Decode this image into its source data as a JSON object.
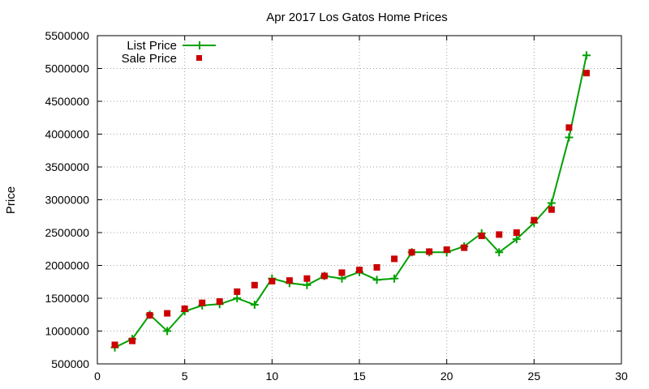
{
  "chart_data": {
    "type": "line",
    "title": "Apr 2017 Los Gatos Home Prices",
    "xlabel": "",
    "ylabel": "Price",
    "xlim": [
      0,
      30
    ],
    "ylim": [
      500000,
      5500000
    ],
    "xticks": [
      "0",
      "5",
      "10",
      "15",
      "20",
      "25",
      "30"
    ],
    "yticks": [
      "500000",
      "1000000",
      "1500000",
      "2000000",
      "2500000",
      "3000000",
      "3500000",
      "4000000",
      "4500000",
      "5000000",
      "5500000"
    ],
    "grid": true,
    "legend_position": "top-left",
    "series": [
      {
        "name": "List Price",
        "color": "#00a000",
        "style": "line-plus",
        "x": [
          1,
          2,
          3,
          4,
          5,
          6,
          7,
          8,
          9,
          10,
          11,
          12,
          13,
          14,
          15,
          16,
          17,
          18,
          19,
          20,
          21,
          22,
          23,
          24,
          25,
          26,
          27,
          28
        ],
        "y": [
          750000,
          880000,
          1250000,
          1000000,
          1300000,
          1390000,
          1410000,
          1500000,
          1400000,
          1800000,
          1730000,
          1700000,
          1840000,
          1800000,
          1900000,
          1780000,
          1800000,
          2200000,
          2200000,
          2200000,
          2290000,
          2490000,
          2200000,
          2400000,
          2650000,
          2950000,
          3950000,
          5200000
        ]
      },
      {
        "name": "Sale Price",
        "color": "#cc0000",
        "style": "square-marker",
        "x": [
          1,
          2,
          3,
          4,
          5,
          6,
          7,
          8,
          9,
          10,
          11,
          12,
          13,
          14,
          15,
          16,
          17,
          18,
          19,
          20,
          21,
          22,
          23,
          24,
          25,
          26,
          27,
          28
        ],
        "y": [
          790000,
          850000,
          1240000,
          1270000,
          1340000,
          1430000,
          1450000,
          1600000,
          1700000,
          1760000,
          1770000,
          1800000,
          1840000,
          1890000,
          1930000,
          1970000,
          2100000,
          2200000,
          2210000,
          2240000,
          2270000,
          2450000,
          2470000,
          2500000,
          2690000,
          2850000,
          4100000,
          4930000
        ]
      }
    ]
  }
}
